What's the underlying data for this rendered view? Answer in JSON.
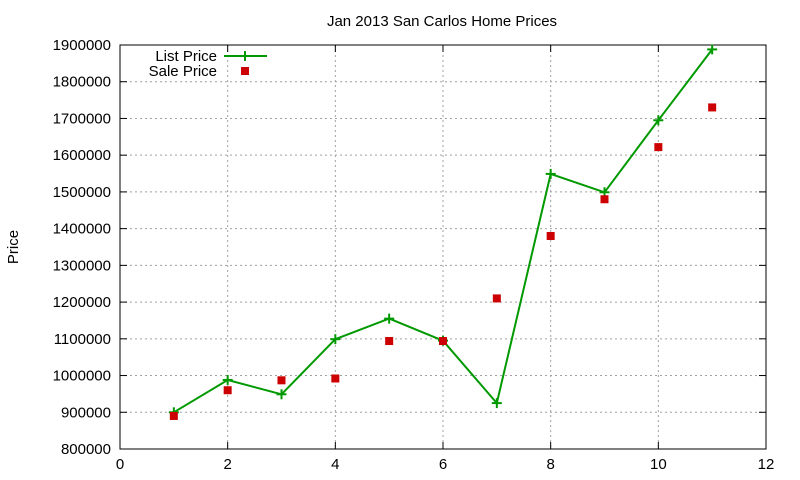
{
  "chart_data": {
    "type": "line",
    "title": "Jan 2013 San Carlos Home Prices",
    "xlabel": "",
    "ylabel": "Price",
    "xlim": [
      0,
      12
    ],
    "ylim": [
      800000,
      1900000
    ],
    "x_ticks": [
      0,
      2,
      4,
      6,
      8,
      10,
      12
    ],
    "y_ticks": [
      800000,
      900000,
      1000000,
      1100000,
      1200000,
      1300000,
      1400000,
      1500000,
      1600000,
      1700000,
      1800000,
      1900000
    ],
    "grid": true,
    "legend_position": "top-left",
    "series": [
      {
        "name": "List Price",
        "style": "line-with-plus-markers",
        "color": "#009900",
        "x": [
          1,
          2,
          3,
          4,
          5,
          6,
          7,
          8,
          9,
          10,
          11
        ],
        "values": [
          900000,
          988000,
          949000,
          1099000,
          1155000,
          1095000,
          925000,
          1549000,
          1499000,
          1695000,
          1888000
        ]
      },
      {
        "name": "Sale Price",
        "style": "square-markers",
        "color": "#cc0000",
        "x": [
          1,
          2,
          3,
          4,
          5,
          6,
          7,
          8,
          9,
          10,
          11
        ],
        "values": [
          890000,
          960000,
          987000,
          992000,
          1094000,
          1094000,
          1210000,
          1380000,
          1480000,
          1622000,
          1730000
        ]
      }
    ]
  }
}
